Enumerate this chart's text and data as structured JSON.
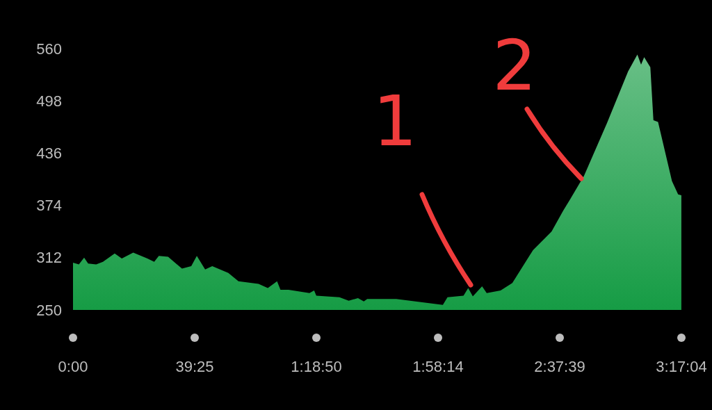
{
  "chart_data": {
    "type": "area",
    "grid": false,
    "marker": "none",
    "x": [
      0,
      1.9,
      3.6,
      4.9,
      7.5,
      9.7,
      13.5,
      15.8,
      19.5,
      24.1,
      26.3,
      27.8,
      30.8,
      35.3,
      38.3,
      40.1,
      42.8,
      45.1,
      50.3,
      53.6,
      60.1,
      63.1,
      66.1,
      67.2,
      69.8,
      76.6,
      78.1,
      78.8,
      86.3,
      89.3,
      92.3,
      94.2,
      95.3,
      99.1,
      104.7,
      119.8,
      121.3,
      126.5,
      128,
      129.5,
      132.5,
      134,
      138.5,
      142.3,
      149,
      155,
      158.8,
      161,
      165.5,
      173,
      179.8,
      182.8,
      184,
      185,
      187,
      188,
      189.5,
      194,
      196,
      197.05
    ],
    "series": [
      {
        "color": "#169c45",
        "values": [
          306,
          304,
          312,
          305,
          304,
          307,
          317,
          311,
          318,
          311,
          307,
          314,
          313,
          299,
          302,
          314,
          298,
          302,
          294,
          284,
          281,
          276,
          284,
          274,
          274,
          270,
          273,
          267,
          265,
          261,
          264,
          260,
          263,
          263,
          263,
          256,
          265,
          267,
          276,
          266,
          278,
          270,
          273,
          282,
          321,
          343,
          368,
          381,
          409,
          472,
          533,
          553,
          541,
          550,
          538,
          475,
          473,
          403,
          387,
          386
        ]
      }
    ],
    "xlim": [
      0,
      197.067
    ],
    "xticks": [
      {
        "value": 0,
        "label": "0:00"
      },
      {
        "value": 39.417,
        "label": "39:25"
      },
      {
        "value": 78.833,
        "label": "1:18:50"
      },
      {
        "value": 118.233,
        "label": "1:58:14"
      },
      {
        "value": 157.65,
        "label": "2:37:39"
      },
      {
        "value": 197.067,
        "label": "3:17:04"
      }
    ],
    "ylim": [
      250,
      560
    ],
    "yticks": [
      250,
      312,
      374,
      436,
      498,
      560
    ],
    "annotations": [
      "1",
      "2"
    ]
  }
}
